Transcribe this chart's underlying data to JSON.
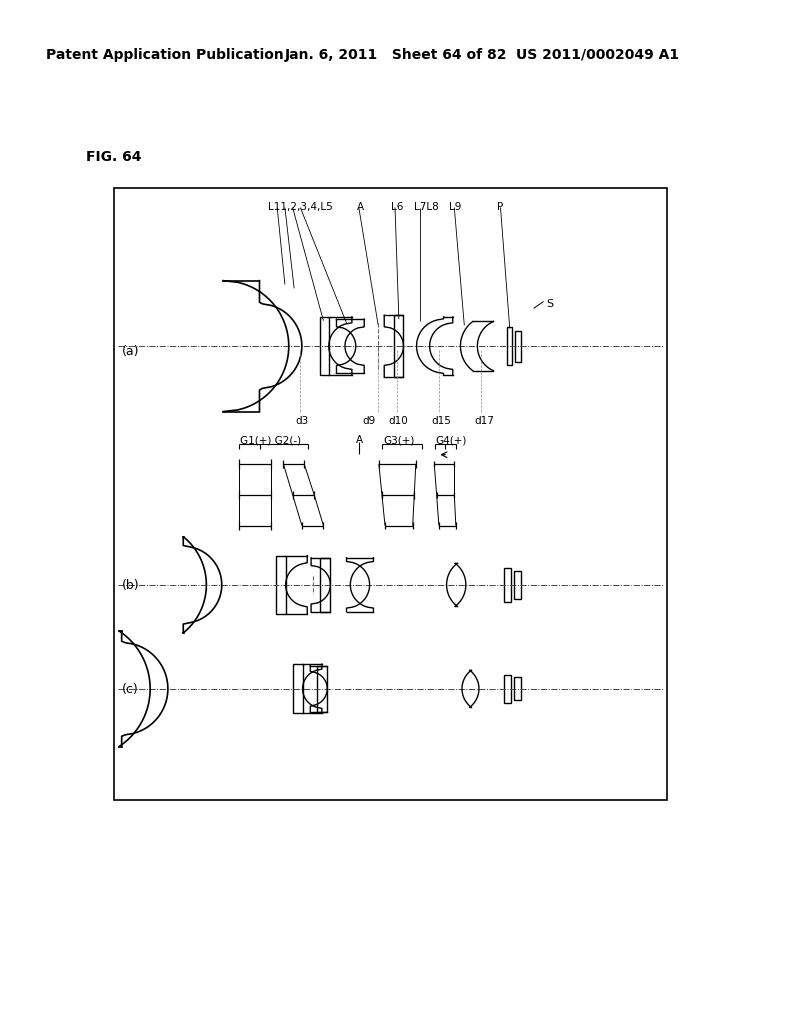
{
  "title_left": "Patent Application Publication",
  "title_center": "Jan. 6, 2011   Sheet 64 of 82",
  "title_right": "US 2011/0002049 A1",
  "fig_label": "FIG. 64",
  "bg_color": "#ffffff",
  "line_color": "#000000"
}
